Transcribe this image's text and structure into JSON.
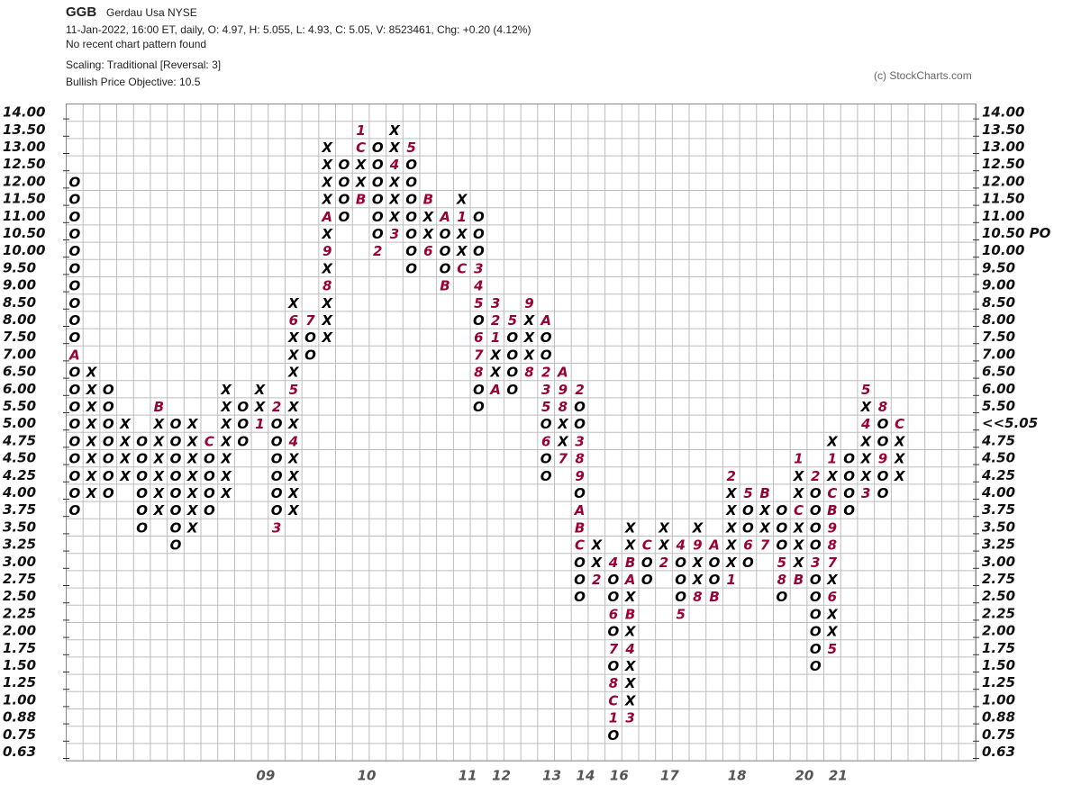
{
  "chart_data": {
    "type": "point-and-figure",
    "symbol": "GGB",
    "name": "Gerdau Usa  NYSE",
    "quote": "11-Jan-2022, 16:00 ET, daily, O: 4.97, H: 5.055, L: 4.93, C: 5.05, V: 8523461, Chg: +0.20 (4.12%)",
    "pattern": "No recent chart pattern found",
    "scaling": "Scaling: Traditional [Reversal: 3]",
    "objective_text": "Bullish Price Objective: 10.5",
    "copyright": "(c) StockCharts.com",
    "xo_color": "#000000",
    "month_color": "#990033",
    "objective_color": "#1aa31a",
    "price_color": "#b0003a",
    "grid": true,
    "price_objective": {
      "value": 10.5,
      "label": "10.50 PO"
    },
    "last_price": {
      "value": 5.05,
      "label": "<<5.05"
    },
    "yticks": [
      {
        "value": 14,
        "label": "14.00"
      },
      {
        "value": 13.5,
        "label": "13.50"
      },
      {
        "value": 13,
        "label": "13.00"
      },
      {
        "value": 12.5,
        "label": "12.50"
      },
      {
        "value": 12,
        "label": "12.00"
      },
      {
        "value": 11.5,
        "label": "11.50"
      },
      {
        "value": 11,
        "label": "11.00"
      },
      {
        "value": 10.5,
        "label": "10.50"
      },
      {
        "value": 10,
        "label": "10.00"
      },
      {
        "value": 9.5,
        "label": "9.50"
      },
      {
        "value": 9,
        "label": "9.00"
      },
      {
        "value": 8.5,
        "label": "8.50"
      },
      {
        "value": 8,
        "label": "8.00"
      },
      {
        "value": 7.5,
        "label": "7.50"
      },
      {
        "value": 7,
        "label": "7.00"
      },
      {
        "value": 6.5,
        "label": "6.50"
      },
      {
        "value": 6,
        "label": "6.00"
      },
      {
        "value": 5.5,
        "label": "5.50"
      },
      {
        "value": 5,
        "label": "5.00"
      },
      {
        "value": 4.75,
        "label": "4.75"
      },
      {
        "value": 4.5,
        "label": "4.50"
      },
      {
        "value": 4.25,
        "label": "4.25"
      },
      {
        "value": 4,
        "label": "4.00"
      },
      {
        "value": 3.75,
        "label": "3.75"
      },
      {
        "value": 3.5,
        "label": "3.50"
      },
      {
        "value": 3.25,
        "label": "3.25"
      },
      {
        "value": 3,
        "label": "3.00"
      },
      {
        "value": 2.75,
        "label": "2.75"
      },
      {
        "value": 2.5,
        "label": "2.50"
      },
      {
        "value": 2.25,
        "label": "2.25"
      },
      {
        "value": 2,
        "label": "2.00"
      },
      {
        "value": 1.75,
        "label": "1.75"
      },
      {
        "value": 1.5,
        "label": "1.50"
      },
      {
        "value": 1.25,
        "label": "1.25"
      },
      {
        "value": 1,
        "label": "1.00"
      },
      {
        "value": 0.88,
        "label": "0.88"
      },
      {
        "value": 0.75,
        "label": "0.75"
      },
      {
        "value": 0.63,
        "label": "0.63"
      }
    ],
    "columns": [
      {
        "top": 12,
        "marks": [
          "O",
          "O",
          "O",
          "O",
          "O",
          "O",
          "O",
          "O",
          "O",
          "O",
          "A",
          "O",
          "O",
          "O",
          "O",
          "O",
          "O",
          "O",
          "O",
          "O"
        ]
      },
      {
        "top": 6.5,
        "marks": [
          "X",
          "X",
          "X",
          "X",
          "X",
          "X",
          "X",
          "X"
        ]
      },
      {
        "top": 6,
        "marks": [
          "O",
          "O",
          "O",
          "O",
          "O",
          "O",
          "O"
        ]
      },
      {
        "top": 5,
        "marks": [
          "X",
          "X",
          "X",
          "X"
        ]
      },
      {
        "top": 4.75,
        "marks": [
          "O",
          "O",
          "O",
          "O",
          "O",
          "O"
        ]
      },
      {
        "top": 5.5,
        "marks": [
          "B",
          "X",
          "X",
          "X",
          "X",
          "X",
          "X"
        ]
      },
      {
        "top": 5,
        "marks": [
          "O",
          "O",
          "O",
          "O",
          "O",
          "O",
          "O",
          "O"
        ]
      },
      {
        "top": 5,
        "marks": [
          "X",
          "X",
          "X",
          "X",
          "X",
          "X",
          "X"
        ]
      },
      {
        "top": 4.75,
        "marks": [
          "C",
          "O",
          "O",
          "O",
          "O"
        ]
      },
      {
        "top": 6,
        "marks": [
          "X",
          "X",
          "X",
          "X",
          "X",
          "X",
          "X"
        ]
      },
      {
        "top": 5.5,
        "marks": [
          "O",
          "O",
          "O"
        ]
      },
      {
        "top": 6,
        "marks": [
          "X",
          "X",
          "1"
        ],
        "year": "09"
      },
      {
        "top": 5.5,
        "marks": [
          "2",
          "O",
          "O",
          "O",
          "O",
          "O",
          "O",
          "3"
        ]
      },
      {
        "top": 8.5,
        "marks": [
          "X",
          "6",
          "X",
          "X",
          "X",
          "5",
          "X",
          "X",
          "4",
          "X",
          "X",
          "X",
          "X"
        ]
      },
      {
        "top": 8,
        "marks": [
          "7",
          "O",
          "O"
        ]
      },
      {
        "top": 13,
        "marks": [
          "X",
          "X",
          "X",
          "X",
          "A",
          "X",
          "9",
          "X",
          "8",
          "X",
          "X",
          "X"
        ]
      },
      {
        "top": 12.5,
        "marks": [
          "O",
          "O",
          "O",
          "O"
        ]
      },
      {
        "top": 13.5,
        "marks": [
          "1",
          "C",
          "X",
          "X",
          "B"
        ],
        "year": "10"
      },
      {
        "top": 13,
        "marks": [
          "O",
          "O",
          "O",
          "O",
          "O",
          "O",
          "2"
        ]
      },
      {
        "top": 13.5,
        "marks": [
          "X",
          "X",
          "4",
          "X",
          "X",
          "X",
          "3"
        ]
      },
      {
        "top": 13,
        "marks": [
          "5",
          "O",
          "O",
          "O",
          "O",
          "O",
          "O",
          "O"
        ]
      },
      {
        "top": 11.5,
        "marks": [
          "B",
          "X",
          "X",
          "6"
        ]
      },
      {
        "top": 11,
        "marks": [
          "A",
          "O",
          "O",
          "O",
          "B"
        ]
      },
      {
        "top": 11.5,
        "marks": [
          "X",
          "1",
          "X",
          "X",
          "C"
        ],
        "year": "11"
      },
      {
        "top": 11,
        "marks": [
          "O",
          "O",
          "O",
          "3",
          "4",
          "5",
          "O",
          "6",
          "7",
          "8",
          "O",
          "O"
        ]
      },
      {
        "top": 8.5,
        "marks": [
          "3",
          "2",
          "1",
          "X",
          "X",
          "A"
        ],
        "year": "12"
      },
      {
        "top": 8,
        "marks": [
          "5",
          "O",
          "O",
          "O",
          "O"
        ]
      },
      {
        "top": 8.5,
        "marks": [
          "9",
          "X",
          "X",
          "X",
          "8"
        ]
      },
      {
        "top": 8,
        "marks": [
          "A",
          "O",
          "O",
          "2",
          "3",
          "5",
          "O",
          "6",
          "O",
          "O"
        ],
        "year": "13"
      },
      {
        "top": 6.5,
        "marks": [
          "A",
          "9",
          "8",
          "X",
          "X",
          "7"
        ]
      },
      {
        "top": 6,
        "marks": [
          "2",
          "O",
          "O",
          "3",
          "8",
          "9",
          "O",
          "A",
          "B",
          "C",
          "O",
          "O",
          "O"
        ],
        "year": "14"
      },
      {
        "top": 3.25,
        "marks": [
          "X",
          "X",
          "2"
        ]
      },
      {
        "top": 3,
        "marks": [
          "4",
          "O",
          "O",
          "6",
          "O",
          "7",
          "O",
          "8",
          "C",
          "1",
          "O"
        ],
        "year": "16"
      },
      {
        "top": 3.5,
        "marks": [
          "X",
          "X",
          "B",
          "A",
          "X",
          "B",
          "X",
          "4",
          "X",
          "X",
          "X",
          "3"
        ]
      },
      {
        "top": 3.25,
        "marks": [
          "C",
          "O",
          "O"
        ]
      },
      {
        "top": 3.5,
        "marks": [
          "X",
          "X",
          "2"
        ],
        "year": "17"
      },
      {
        "top": 3.25,
        "marks": [
          "4",
          "O",
          "O",
          "O",
          "5"
        ]
      },
      {
        "top": 3.5,
        "marks": [
          "X",
          "9",
          "X",
          "X",
          "8"
        ]
      },
      {
        "top": 3.25,
        "marks": [
          "A",
          "O",
          "O",
          "B"
        ]
      },
      {
        "top": 4.25,
        "marks": [
          "2",
          "X",
          "X",
          "X",
          "X",
          "X",
          "1"
        ],
        "year": "18"
      },
      {
        "top": 4,
        "marks": [
          "5",
          "O",
          "O",
          "6",
          "O"
        ]
      },
      {
        "top": 4,
        "marks": [
          "B",
          "X",
          "X",
          "7"
        ]
      },
      {
        "top": 3.75,
        "marks": [
          "O",
          "O",
          "O",
          "5",
          "8",
          "O"
        ]
      },
      {
        "top": 4.5,
        "marks": [
          "1",
          "X",
          "X",
          "C",
          "X",
          "X",
          "X",
          "B"
        ],
        "year": "20"
      },
      {
        "top": 4.25,
        "marks": [
          "2",
          "O",
          "O",
          "O",
          "O",
          "3",
          "O",
          "O",
          "O",
          "O",
          "O",
          "O"
        ]
      },
      {
        "top": 4.75,
        "marks": [
          "X",
          "1",
          "X",
          "C",
          "B",
          "9",
          "8",
          "7",
          "X",
          "6",
          "X",
          "X",
          "5"
        ],
        "year": "21"
      },
      {
        "top": 4.5,
        "marks": [
          "O",
          "O",
          "O",
          "O"
        ]
      },
      {
        "top": 6,
        "marks": [
          "5",
          "X",
          "4",
          "X",
          "X",
          "X",
          "3"
        ]
      },
      {
        "top": 5.5,
        "marks": [
          "8",
          "O",
          "O",
          "9",
          "O",
          "O"
        ]
      },
      {
        "top": 5,
        "marks": [
          "C",
          "X",
          "X",
          "X"
        ]
      }
    ]
  }
}
